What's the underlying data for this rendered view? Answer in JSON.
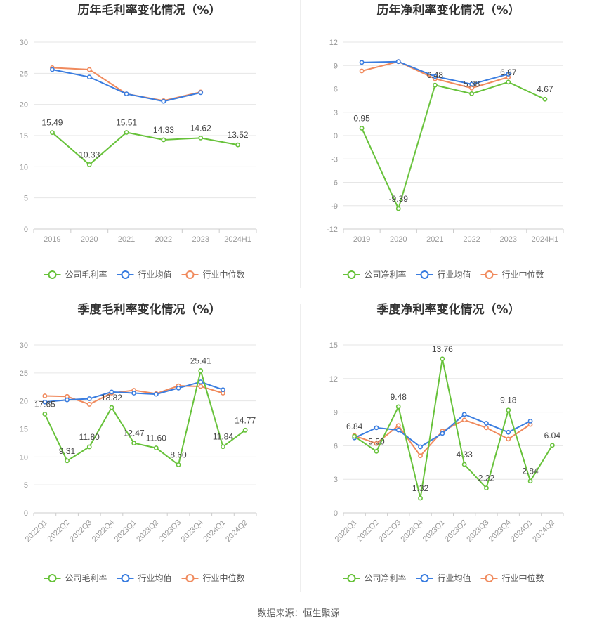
{
  "source": "数据来源：恒生聚源",
  "legend_item_labels": {
    "industry_avg": "行业均值",
    "industry_median": "行业中位数"
  },
  "colors": {
    "company": "#67c23a",
    "industry_avg": "#3a7de0",
    "industry_median": "#f08a5d",
    "grid": "#e6e6e6",
    "axis": "#ccc"
  },
  "chart_data": [
    {
      "id": "annual_gross",
      "type": "line",
      "title": "历年毛利率变化情况（%）",
      "categories": [
        "2019",
        "2020",
        "2021",
        "2022",
        "2023",
        "2024H1"
      ],
      "ylim": [
        0,
        30
      ],
      "yticks": [
        0,
        5,
        10,
        15,
        20,
        25,
        30
      ],
      "series": [
        {
          "name": "公司毛利率",
          "key": "company",
          "values": [
            15.49,
            10.33,
            15.51,
            14.33,
            14.62,
            13.52
          ],
          "labels": [
            "15.49",
            "10.33",
            "15.51",
            "14.33",
            "14.62",
            "13.52"
          ]
        },
        {
          "name": "行业均值",
          "key": "industry_avg",
          "values": [
            25.6,
            24.4,
            21.7,
            20.5,
            21.9,
            null
          ]
        },
        {
          "name": "行业中位数",
          "key": "industry_median",
          "values": [
            25.9,
            25.6,
            21.7,
            20.6,
            22.0,
            null
          ]
        }
      ]
    },
    {
      "id": "annual_net",
      "type": "line",
      "title": "历年净利率变化情况（%）",
      "categories": [
        "2019",
        "2020",
        "2021",
        "2022",
        "2023",
        "2024H1"
      ],
      "ylim": [
        -12,
        12
      ],
      "yticks": [
        -12,
        -9,
        -6,
        -3,
        0,
        3,
        6,
        9,
        12
      ],
      "series": [
        {
          "name": "公司净利率",
          "key": "company",
          "values": [
            0.95,
            -9.39,
            6.48,
            5.38,
            6.87,
            4.67
          ],
          "labels": [
            "0.95",
            "-9.39",
            "6.48",
            "5.38",
            "6.87",
            "4.67"
          ]
        },
        {
          "name": "行业均值",
          "key": "industry_avg",
          "values": [
            9.4,
            9.5,
            7.6,
            6.6,
            7.9,
            null
          ]
        },
        {
          "name": "行业中位数",
          "key": "industry_median",
          "values": [
            8.3,
            9.5,
            7.3,
            6.1,
            7.5,
            null
          ]
        }
      ]
    },
    {
      "id": "quarter_gross",
      "type": "line",
      "title": "季度毛利率变化情况（%）",
      "categories": [
        "2022Q1",
        "2022Q2",
        "2022Q3",
        "2022Q4",
        "2023Q1",
        "2023Q2",
        "2023Q3",
        "2023Q4",
        "2024Q1",
        "2024Q2"
      ],
      "ylim": [
        0,
        30
      ],
      "yticks": [
        0,
        5,
        10,
        15,
        20,
        25,
        30
      ],
      "series": [
        {
          "name": "公司毛利率",
          "key": "company",
          "values": [
            17.65,
            9.31,
            11.8,
            18.82,
            12.47,
            11.6,
            8.6,
            25.41,
            11.84,
            14.77
          ],
          "labels": [
            "17.65",
            "9.31",
            "11.80",
            "18.82",
            "12.47",
            "11.60",
            "8.60",
            "25.41",
            "11.84",
            "14.77"
          ]
        },
        {
          "name": "行业均值",
          "key": "industry_avg",
          "values": [
            19.8,
            20.2,
            20.4,
            21.6,
            21.4,
            21.2,
            22.3,
            23.4,
            22.0,
            null
          ]
        },
        {
          "name": "行业中位数",
          "key": "industry_median",
          "values": [
            20.9,
            20.8,
            19.4,
            21.4,
            21.9,
            21.3,
            22.7,
            22.6,
            21.4,
            null
          ]
        }
      ]
    },
    {
      "id": "quarter_net",
      "type": "line",
      "title": "季度净利率变化情况（%）",
      "categories": [
        "2022Q1",
        "2022Q2",
        "2022Q3",
        "2022Q4",
        "2023Q1",
        "2023Q2",
        "2023Q3",
        "2023Q4",
        "2024Q1",
        "2024Q2"
      ],
      "ylim": [
        0,
        15
      ],
      "yticks": [
        0,
        3,
        6,
        9,
        12,
        15
      ],
      "series": [
        {
          "name": "公司净利率",
          "key": "company",
          "values": [
            6.84,
            5.5,
            9.48,
            1.32,
            13.76,
            4.33,
            2.22,
            9.18,
            2.84,
            6.04
          ],
          "labels": [
            "6.84",
            "5.50",
            "9.48",
            "1.32",
            "13.76",
            "4.33",
            "2.22",
            "9.18",
            "2.84",
            "6.04"
          ]
        },
        {
          "name": "行业均值",
          "key": "industry_avg",
          "values": [
            6.7,
            7.6,
            7.4,
            5.9,
            7.1,
            8.8,
            8.0,
            7.2,
            8.2,
            null
          ]
        },
        {
          "name": "行业中位数",
          "key": "industry_median",
          "values": [
            6.9,
            6.2,
            7.8,
            5.1,
            7.3,
            8.3,
            7.6,
            6.6,
            7.9,
            null
          ]
        }
      ]
    }
  ]
}
